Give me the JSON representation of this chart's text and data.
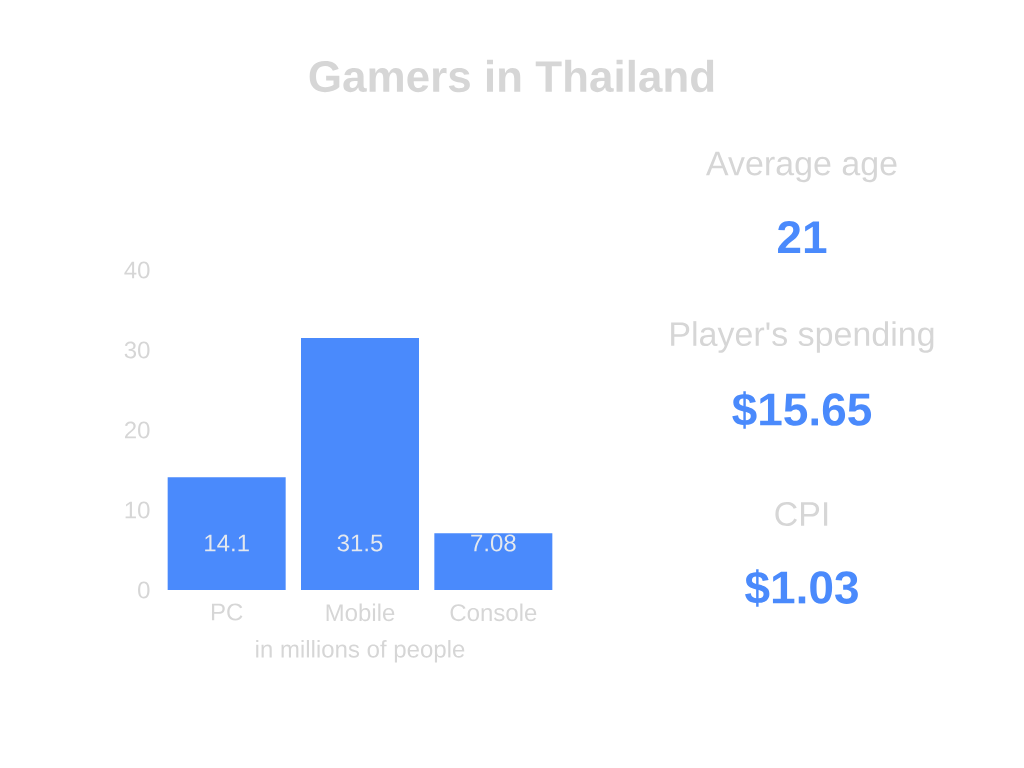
{
  "chart_data": [
    {
      "type": "bar",
      "title": "Gamers in Thailand",
      "xlabel": "in millions of people",
      "categories": [
        "PC",
        "Mobile",
        "Console"
      ],
      "values": [
        14.1,
        31.5,
        7.08
      ],
      "color": "#4a8afc",
      "ylim": [
        0,
        40
      ],
      "yticks": [
        0,
        10,
        20,
        30,
        40
      ],
      "data_labels": true
    },
    {
      "type": "other",
      "color": "#4a8afc",
      "annotations": [
        "Average age",
        "21",
        "Player's spending",
        "$15.65",
        "CPI",
        "$1.03"
      ]
    }
  ]
}
